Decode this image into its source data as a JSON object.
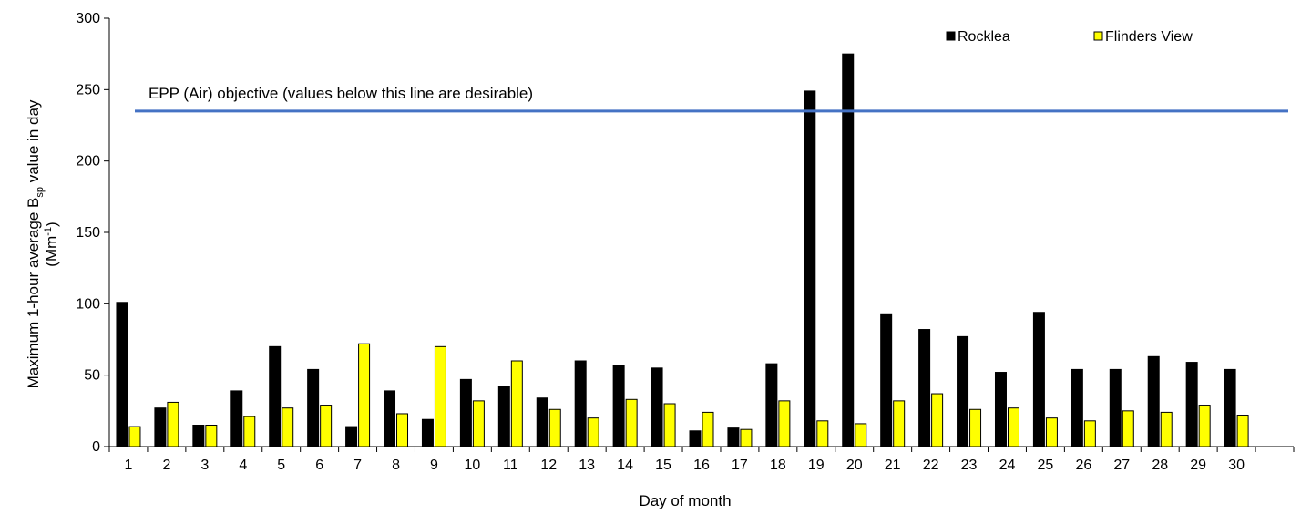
{
  "chart_data": {
    "type": "bar",
    "xlabel": "Day of month",
    "ylabel_main": "Maximum 1-hour average B",
    "ylabel_sub": "sp",
    "ylabel_tail": " value in day",
    "ylabel_unit_main": "(Mm",
    "ylabel_unit_sup": "-1",
    "ylabel_unit_tail": ")",
    "ylim": [
      0,
      300
    ],
    "yticks": [
      "0",
      "50",
      "100",
      "150",
      "200",
      "250",
      "300"
    ],
    "categories": [
      "1",
      "2",
      "3",
      "4",
      "5",
      "6",
      "7",
      "8",
      "9",
      "10",
      "11",
      "12",
      "13",
      "14",
      "15",
      "16",
      "17",
      "18",
      "19",
      "20",
      "21",
      "22",
      "23",
      "24",
      "25",
      "26",
      "27",
      "28",
      "29",
      "30"
    ],
    "series": [
      {
        "name": "Rocklea",
        "color": "#000000",
        "values": [
          101,
          27,
          15,
          39,
          70,
          54,
          14,
          39,
          19,
          47,
          42,
          34,
          60,
          57,
          55,
          11,
          13,
          58,
          249,
          275,
          93,
          82,
          77,
          52,
          94,
          54,
          54,
          63,
          59,
          54
        ]
      },
      {
        "name": "Flinders View",
        "color": "#ffff00",
        "values": [
          14,
          31,
          15,
          21,
          27,
          29,
          72,
          23,
          70,
          32,
          60,
          26,
          20,
          33,
          30,
          24,
          12,
          32,
          18,
          16,
          32,
          37,
          26,
          27,
          20,
          18,
          25,
          24,
          29,
          22
        ]
      }
    ],
    "reference_line": {
      "value": 235,
      "label": "EPP (Air) objective (values below this line are desirable)",
      "color": "#4472c4"
    },
    "grid": false,
    "legend_position": "top-right"
  }
}
